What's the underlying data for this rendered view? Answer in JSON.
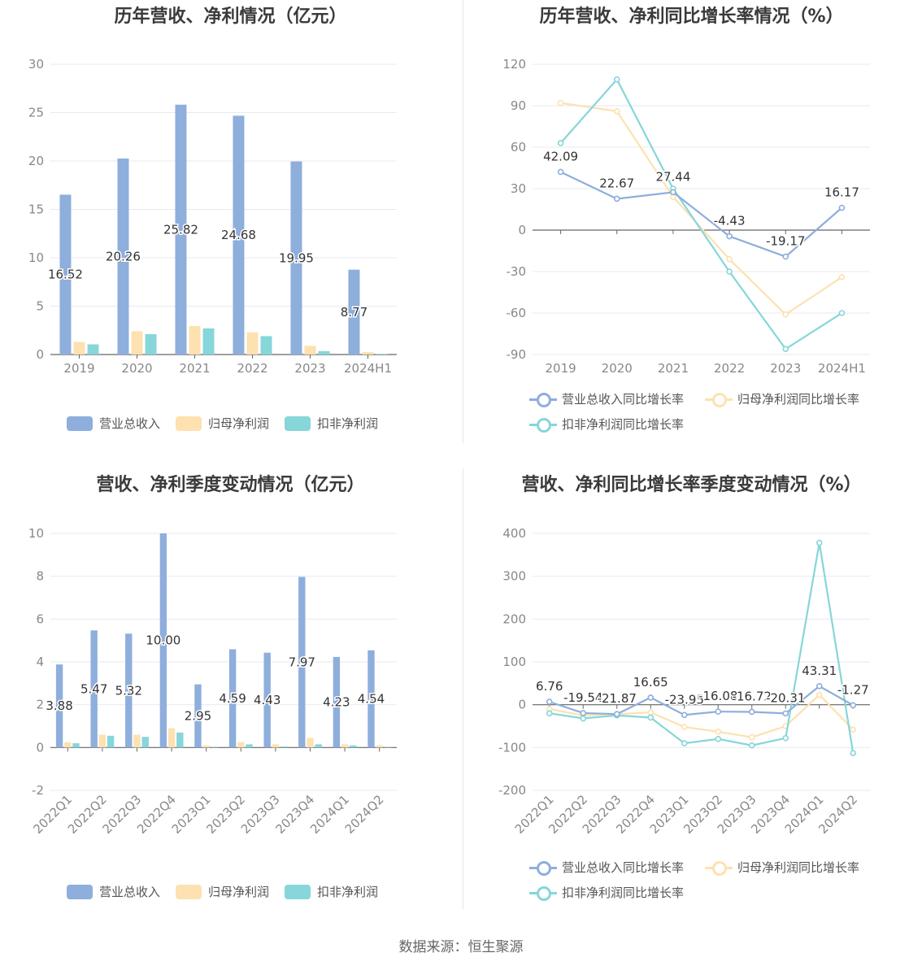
{
  "footer": {
    "source": "数据来源：恒生聚源"
  },
  "colors": {
    "revenue": "#8eaedc",
    "parent": "#fde1b0",
    "deducted": "#86d6da",
    "grid": "#e8eaf2",
    "axis": "#888888",
    "label": "#333333"
  },
  "chart_data": [
    {
      "type": "bar",
      "title": "历年营收、净利情况（亿元）",
      "categories": [
        "2019",
        "2020",
        "2021",
        "2022",
        "2023",
        "2024H1"
      ],
      "yticks": [
        "0",
        "5",
        "10",
        "15",
        "20",
        "25",
        "30"
      ],
      "ylim": [
        0,
        30
      ],
      "series": [
        {
          "name": "营业总收入",
          "values": [
            16.52,
            20.26,
            25.82,
            24.68,
            19.95,
            8.77
          ],
          "labels": [
            "16.52",
            "20.26",
            "25.82",
            "24.68",
            "19.95",
            "8.77"
          ]
        },
        {
          "name": "归母净利润",
          "values": [
            1.3,
            2.4,
            2.95,
            2.3,
            0.9,
            0.25
          ]
        },
        {
          "name": "扣非净利润",
          "values": [
            1.05,
            2.1,
            2.7,
            1.9,
            0.35,
            0.05
          ]
        }
      ]
    },
    {
      "type": "line",
      "title": "历年营收、净利同比增长率情况（%）",
      "categories": [
        "2019",
        "2020",
        "2021",
        "2022",
        "2023",
        "2024H1"
      ],
      "yticks": [
        "-90",
        "-60",
        "-30",
        "0",
        "30",
        "60",
        "90",
        "120"
      ],
      "ylim": [
        -90,
        120
      ],
      "series": [
        {
          "name": "营业总收入同比增长率",
          "values": [
            42.09,
            22.67,
            27.44,
            -4.43,
            -19.17,
            16.17
          ],
          "labels": [
            "42.09",
            "22.67",
            "27.44",
            "-4.43",
            "-19.17",
            "16.17"
          ]
        },
        {
          "name": "归母净利润同比增长率",
          "values": [
            92,
            86,
            24,
            -21,
            -61,
            -34
          ]
        },
        {
          "name": "扣非净利润同比增长率",
          "values": [
            63,
            109,
            30,
            -30,
            -86,
            -60
          ]
        }
      ]
    },
    {
      "type": "bar",
      "title": "营收、净利季度变动情况（亿元）",
      "categories": [
        "2022Q1",
        "2022Q2",
        "2022Q3",
        "2022Q4",
        "2023Q1",
        "2023Q2",
        "2023Q3",
        "2023Q4",
        "2024Q1",
        "2024Q2"
      ],
      "yticks": [
        "-2",
        "0",
        "2",
        "4",
        "6",
        "8",
        "10"
      ],
      "ylim": [
        -2,
        10
      ],
      "series": [
        {
          "name": "营业总收入",
          "values": [
            3.88,
            5.47,
            5.32,
            10.0,
            2.95,
            4.59,
            4.43,
            7.97,
            4.23,
            4.54
          ],
          "labels": [
            "3.88",
            "5.47",
            "5.32",
            "10.00",
            "2.95",
            "4.59",
            "4.43",
            "7.97",
            "4.23",
            "4.54"
          ]
        },
        {
          "name": "归母净利润",
          "values": [
            0.25,
            0.6,
            0.6,
            0.9,
            0.1,
            0.25,
            0.15,
            0.45,
            0.15,
            0.1
          ]
        },
        {
          "name": "扣非净利润",
          "values": [
            0.2,
            0.55,
            0.5,
            0.7,
            0.02,
            0.15,
            0.05,
            0.15,
            0.1,
            0.02
          ]
        }
      ]
    },
    {
      "type": "line",
      "title": "营收、净利同比增长率季度变动情况（%）",
      "categories": [
        "2022Q1",
        "2022Q2",
        "2022Q3",
        "2022Q4",
        "2023Q1",
        "2023Q2",
        "2023Q3",
        "2023Q4",
        "2024Q1",
        "2024Q2"
      ],
      "yticks": [
        "-200",
        "-100",
        "0",
        "100",
        "200",
        "300",
        "400"
      ],
      "ylim": [
        -200,
        400
      ],
      "series": [
        {
          "name": "营业总收入同比增长率",
          "values": [
            6.76,
            -19.54,
            -21.87,
            16.65,
            -23.95,
            -16.08,
            -16.72,
            -20.31,
            43.31,
            -1.27
          ],
          "labels": [
            "6.76",
            "-19.54",
            "-21.87",
            "16.65",
            "-23.95",
            "-16.08",
            "-16.72",
            "-20.31",
            "43.31",
            "-1.27"
          ]
        },
        {
          "name": "归母净利润同比增长率",
          "values": [
            -10,
            -25,
            -22,
            -18,
            -52,
            -63,
            -76,
            -50,
            23,
            -58
          ]
        },
        {
          "name": "扣非净利润同比增长率",
          "values": [
            -20,
            -32,
            -25,
            -30,
            -90,
            -80,
            -95,
            -78,
            378,
            -113
          ]
        }
      ]
    }
  ]
}
